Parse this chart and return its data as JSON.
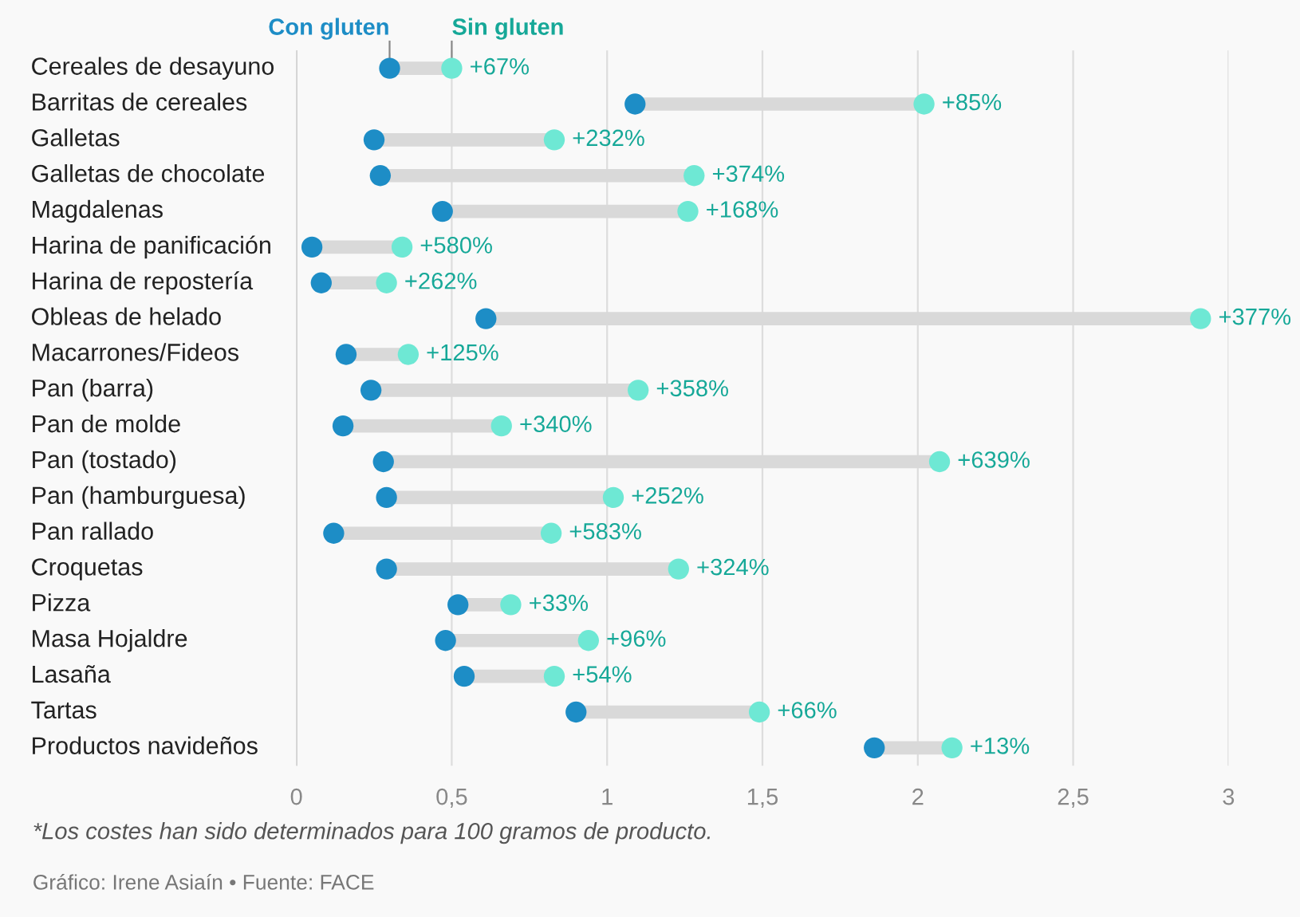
{
  "chart_data": {
    "type": "scatter",
    "orientation": "horizontal",
    "categories": [
      "Cereales de desayuno",
      "Barritas de cereales",
      "Galletas",
      "Galletas de chocolate",
      "Magdalenas",
      "Harina de panificación",
      "Harina de repostería",
      "Obleas de helado",
      "Macarrones/Fideos",
      "Pan (barra)",
      "Pan de molde",
      "Pan (tostado)",
      "Pan (hamburguesa)",
      "Pan rallado",
      "Croquetas",
      "Pizza",
      "Masa Hojaldre",
      "Lasaña",
      "Tartas",
      "Productos navideños"
    ],
    "series": [
      {
        "name": "Con gluten",
        "color": "#1d8dc6",
        "values": [
          0.3,
          1.09,
          0.25,
          0.27,
          0.47,
          0.05,
          0.08,
          0.61,
          0.16,
          0.24,
          0.15,
          0.28,
          0.29,
          0.12,
          0.29,
          0.52,
          0.48,
          0.54,
          0.9,
          1.86
        ]
      },
      {
        "name": "Sin gluten",
        "color": "#6ee8d4",
        "values": [
          0.5,
          2.02,
          0.83,
          1.28,
          1.26,
          0.34,
          0.29,
          2.91,
          0.36,
          1.1,
          0.66,
          2.07,
          1.02,
          0.82,
          1.23,
          0.69,
          0.94,
          0.83,
          1.49,
          2.11
        ]
      }
    ],
    "xlim": [
      0,
      3
    ],
    "xticks": [
      0,
      {
        "value": 0.5,
        "label": "0,5"
      },
      1,
      {
        "value": 1.5,
        "label": "1,5"
      },
      2,
      {
        "value": 2.5,
        "label": "2,5"
      },
      3
    ],
    "grid": "x",
    "legend": "top",
    "marker": "circle",
    "annotations": [
      {
        "text": "+67%",
        "x": 0.5,
        "y": "Cereales de desayuno"
      },
      {
        "text": "+85%",
        "x": 2.02,
        "y": "Barritas de cereales"
      },
      {
        "text": "+232%",
        "x": 0.83,
        "y": "Galletas"
      },
      {
        "text": "+374%",
        "x": 1.28,
        "y": "Galletas de chocolate"
      },
      {
        "text": "+168%",
        "x": 1.26,
        "y": "Magdalenas"
      },
      {
        "text": "+580%",
        "x": 0.34,
        "y": "Harina de panificación"
      },
      {
        "text": "+262%",
        "x": 0.29,
        "y": "Harina de repostería"
      },
      {
        "text": "+377%",
        "x": 2.91,
        "y": "Obleas de helado"
      },
      {
        "text": "+125%",
        "x": 0.36,
        "y": "Macarrones/Fideos"
      },
      {
        "text": "+358%",
        "x": 1.1,
        "y": "Pan (barra)"
      },
      {
        "text": "+340%",
        "x": 0.66,
        "y": "Pan de molde"
      },
      {
        "text": "+639%",
        "x": 2.07,
        "y": "Pan (tostado)"
      },
      {
        "text": "+252%",
        "x": 1.02,
        "y": "Pan (hamburguesa)"
      },
      {
        "text": "+583%",
        "x": 0.82,
        "y": "Pan rallado"
      },
      {
        "text": "+324%",
        "x": 1.23,
        "y": "Croquetas"
      },
      {
        "text": "+33%",
        "x": 0.69,
        "y": "Pizza"
      },
      {
        "text": "+96%",
        "x": 0.94,
        "y": "Masa Hojaldre"
      },
      {
        "text": "+54%",
        "x": 0.83,
        "y": "Lasaña"
      },
      {
        "text": "+66%",
        "x": 1.49,
        "y": "Tartas"
      },
      {
        "text": "+13%",
        "x": 2.11,
        "y": "Productos navideños"
      },
      "*Los costes han sido determinados para 100 gramos de producto.",
      "Gráfico: Irene Asiaín • Fuente: FACE"
    ]
  }
}
